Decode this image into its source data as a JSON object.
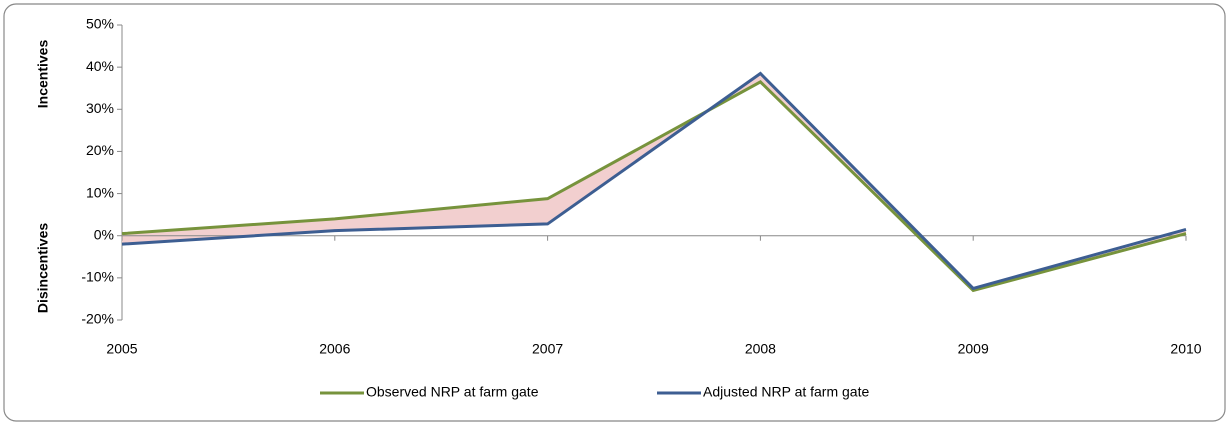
{
  "chart_data": {
    "type": "line",
    "x": [
      2005,
      2006,
      2007,
      2008,
      2009,
      2010
    ],
    "xlim": [
      2005,
      2010
    ],
    "xticks": [
      2005,
      2006,
      2007,
      2008,
      2009,
      2010
    ],
    "ylim": [
      -20,
      50
    ],
    "yticks": [
      {
        "value": -20,
        "label": "-20%"
      },
      {
        "value": -10,
        "label": "-10%"
      },
      {
        "value": 0,
        "label": "0%"
      },
      {
        "value": 10,
        "label": "10%"
      },
      {
        "value": 20,
        "label": "20%"
      },
      {
        "value": 30,
        "label": "30%"
      },
      {
        "value": 40,
        "label": "40%"
      },
      {
        "value": 50,
        "label": "50%"
      }
    ],
    "y_label_upper": "Incentives",
    "y_label_lower": "Disincentives",
    "area_color": "#f2cfcf",
    "series": [
      {
        "name": "Observed NRP at farm gate",
        "color": "#77933c",
        "values": [
          0.5,
          4,
          8.8,
          36.5,
          -13,
          0.5
        ]
      },
      {
        "name": "Adjusted NRP at farm gate",
        "color": "#3d5e92",
        "values": [
          -2,
          1.2,
          2.8,
          38.5,
          -12.5,
          1.5
        ]
      }
    ]
  }
}
